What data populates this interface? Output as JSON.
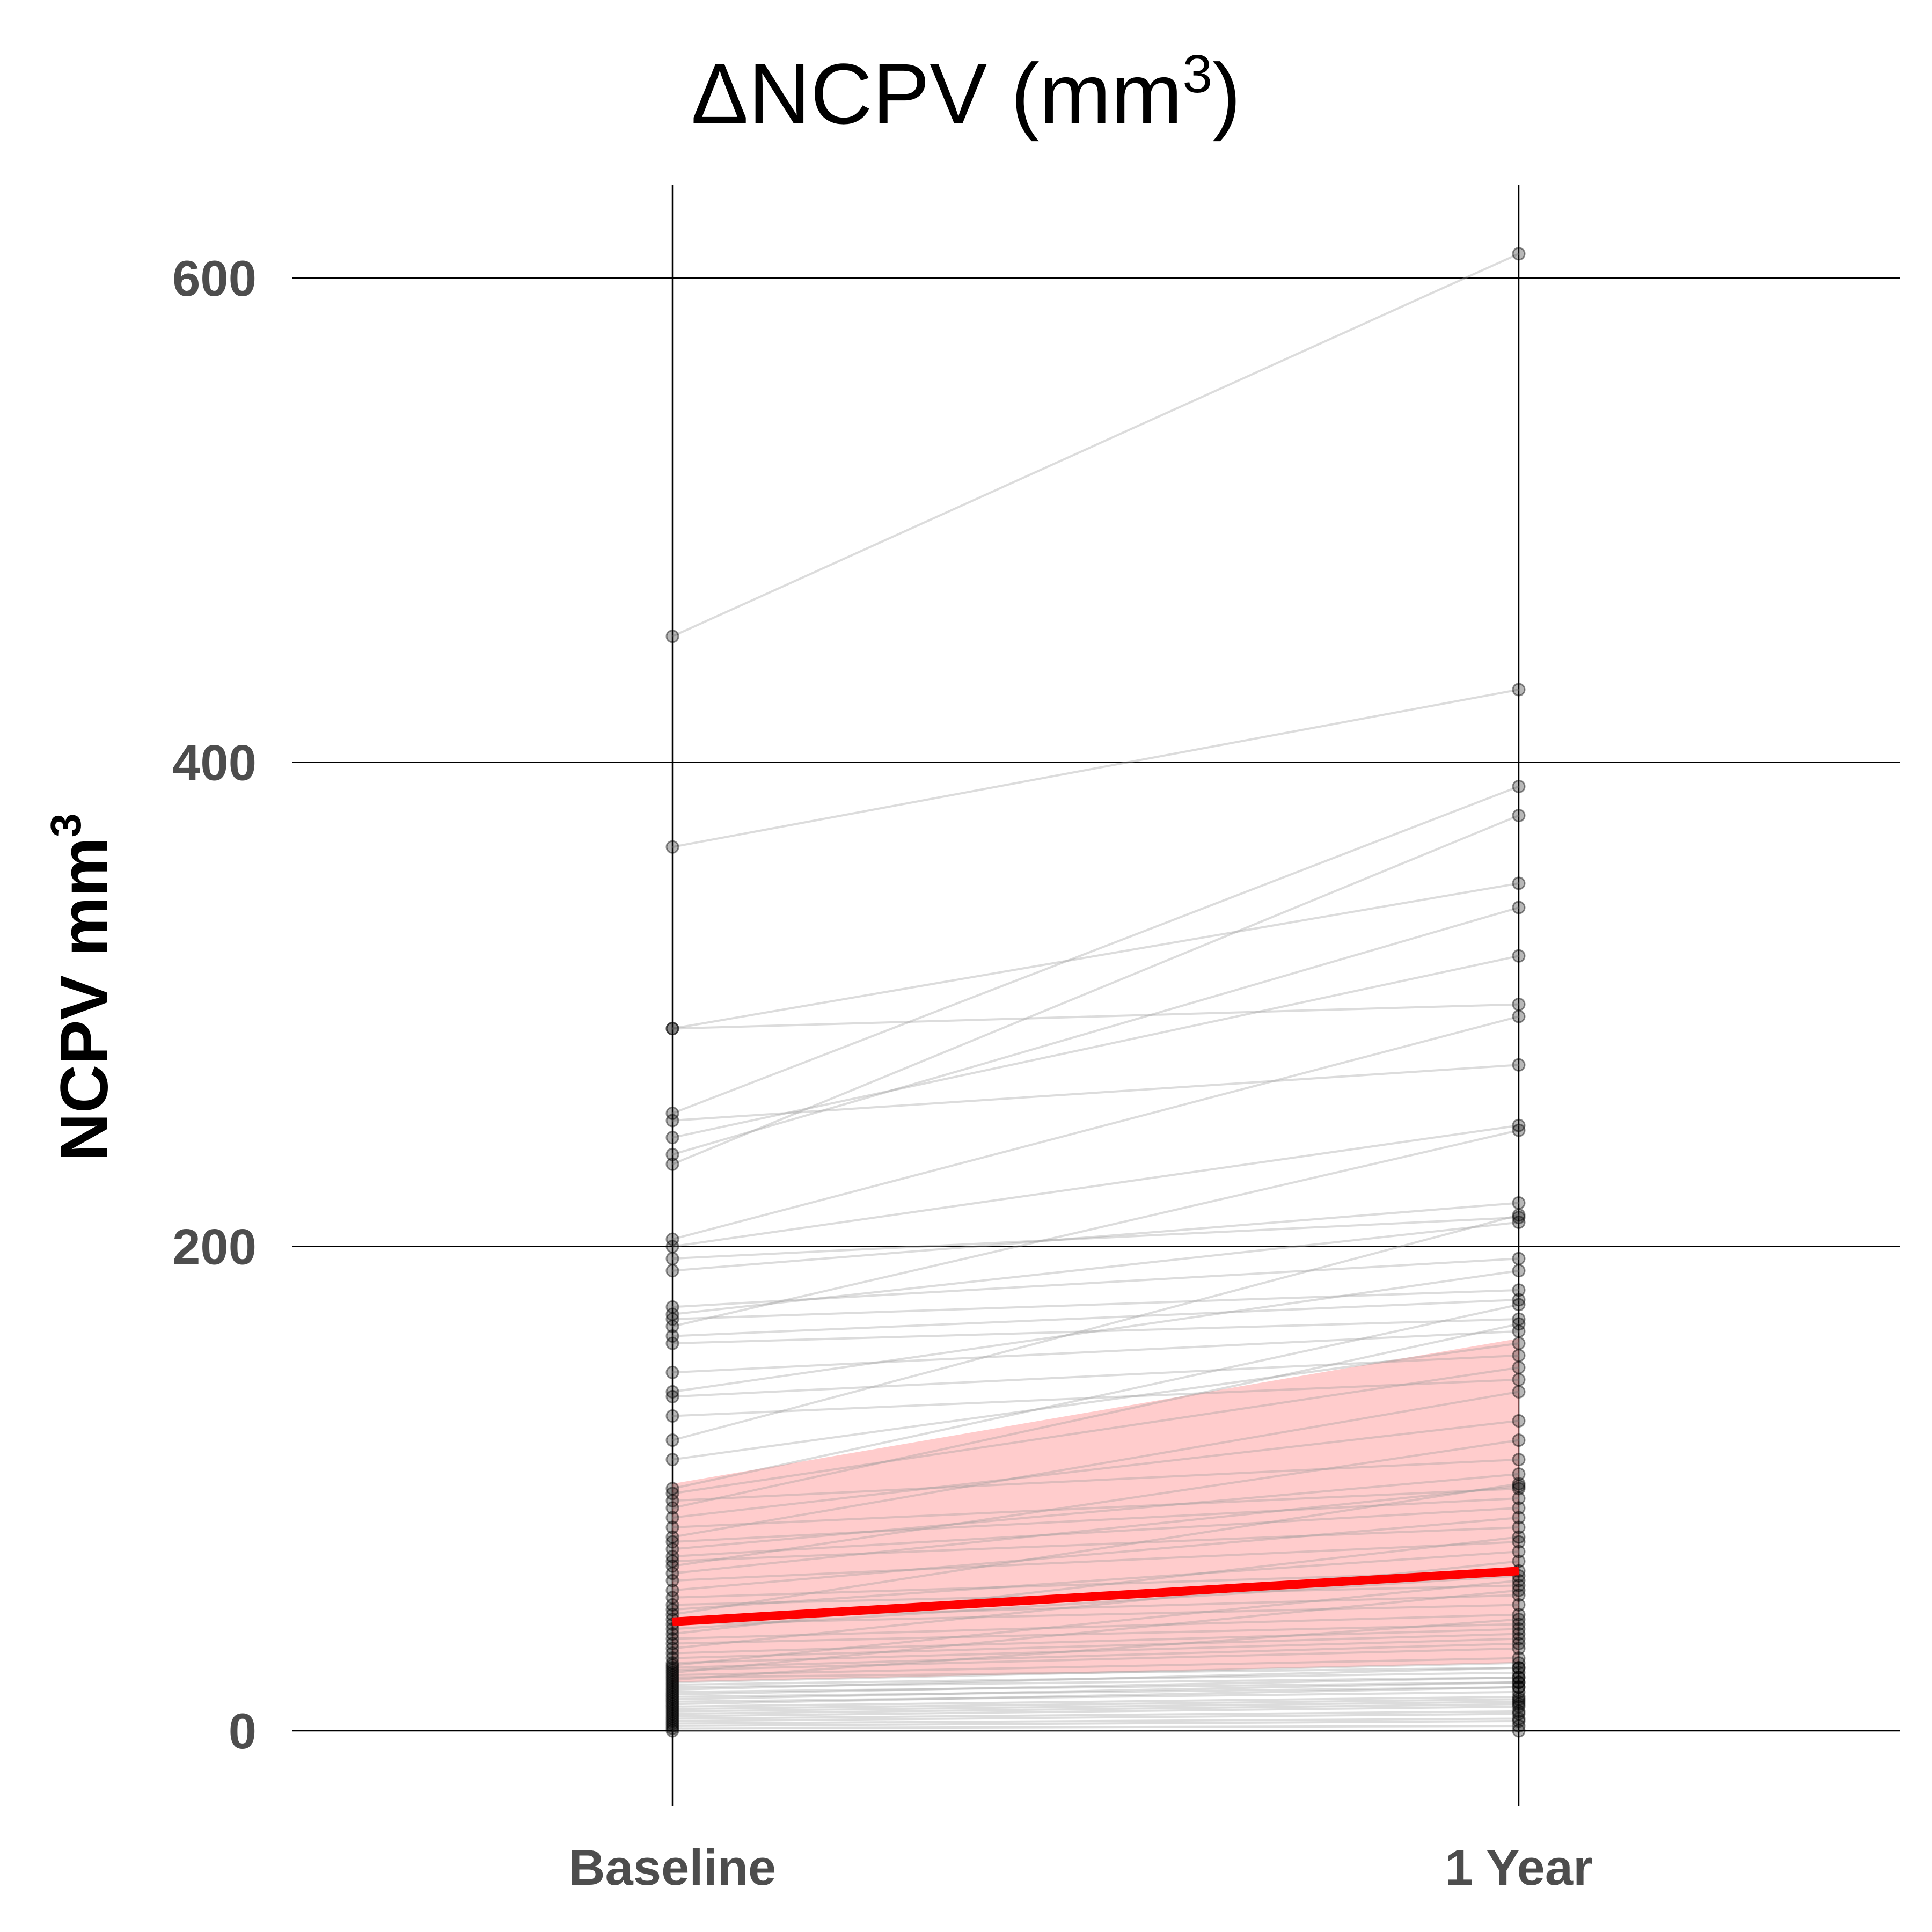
{
  "chart_data": {
    "type": "line",
    "title_main": "ΔNCPV (mm",
    "title_sup": "3",
    "title_close": ")",
    "ylabel_main": "NCPV mm",
    "ylabel_sup": "3",
    "xlabel": "",
    "categories": [
      "Baseline",
      "1 Year"
    ],
    "yticks": [
      0,
      200,
      400,
      600
    ],
    "ylim": [
      -25,
      640
    ],
    "grid": true,
    "colors": {
      "individual_line": "#9a9a9a",
      "point": "#000000",
      "mean_line": "#ff0000",
      "ribbon": "#ff9a9a"
    },
    "mean": {
      "values": [
        45,
        66
      ]
    },
    "ribbon": {
      "lower": [
        20,
        28
      ],
      "upper": [
        102,
        162
      ]
    },
    "individual_pairs": [
      [
        452,
        610
      ],
      [
        365,
        430
      ],
      [
        290,
        300
      ],
      [
        290,
        350
      ],
      [
        255,
        390
      ],
      [
        252,
        275
      ],
      [
        245,
        320
      ],
      [
        238,
        340
      ],
      [
        234,
        378
      ],
      [
        203,
        295
      ],
      [
        200,
        250
      ],
      [
        195,
        212
      ],
      [
        190,
        218
      ],
      [
        175,
        195
      ],
      [
        172,
        210
      ],
      [
        170,
        182
      ],
      [
        167,
        248
      ],
      [
        163,
        178
      ],
      [
        160,
        170
      ],
      [
        148,
        165
      ],
      [
        140,
        190
      ],
      [
        138,
        155
      ],
      [
        130,
        145
      ],
      [
        120,
        213
      ],
      [
        112,
        160
      ],
      [
        100,
        176
      ],
      [
        98,
        150
      ],
      [
        95,
        112
      ],
      [
        92,
        168
      ],
      [
        88,
        128
      ],
      [
        84,
        100
      ],
      [
        80,
        140
      ],
      [
        78,
        96
      ],
      [
        75,
        106
      ],
      [
        72,
        92
      ],
      [
        70,
        84
      ],
      [
        68,
        120
      ],
      [
        65,
        101
      ],
      [
        62,
        78
      ],
      [
        58,
        88
      ],
      [
        55,
        66
      ],
      [
        52,
        60
      ],
      [
        50,
        74
      ],
      [
        48,
        102
      ],
      [
        46,
        56
      ],
      [
        44,
        52
      ],
      [
        42,
        64
      ],
      [
        40,
        80
      ],
      [
        38,
        48
      ],
      [
        36,
        44
      ],
      [
        34,
        70
      ],
      [
        32,
        42
      ],
      [
        30,
        40
      ],
      [
        28,
        38
      ],
      [
        27,
        62
      ],
      [
        26,
        36
      ],
      [
        25,
        34
      ],
      [
        24,
        58
      ],
      [
        23,
        30
      ],
      [
        22,
        26
      ],
      [
        21,
        46
      ],
      [
        20,
        28
      ],
      [
        19,
        24
      ],
      [
        18,
        22
      ],
      [
        17,
        26
      ],
      [
        16,
        20
      ],
      [
        15,
        22
      ],
      [
        14,
        18
      ],
      [
        13,
        20
      ],
      [
        12,
        16
      ],
      [
        11,
        18
      ],
      [
        10,
        14
      ],
      [
        9,
        13
      ],
      [
        8,
        12
      ],
      [
        7,
        11
      ],
      [
        6,
        10
      ],
      [
        5,
        8
      ],
      [
        4,
        7
      ],
      [
        3,
        5
      ],
      [
        2,
        4
      ],
      [
        1,
        2
      ],
      [
        0,
        0
      ]
    ]
  }
}
